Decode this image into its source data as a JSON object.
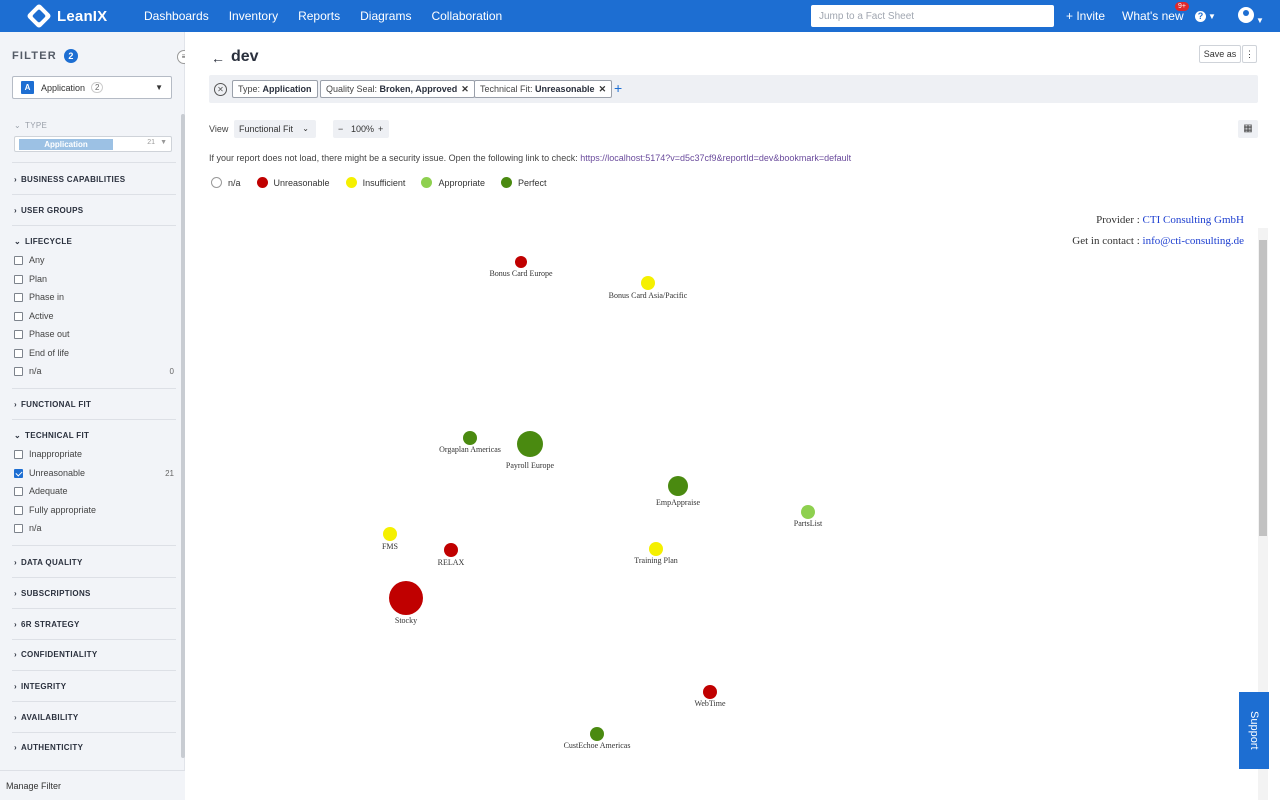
{
  "topbar": {
    "logo": "LeanIX",
    "nav": [
      "Dashboards",
      "Inventory",
      "Reports",
      "Diagrams",
      "Collaboration"
    ],
    "search_placeholder": "Jump to a Fact Sheet",
    "invite": "+ Invite",
    "whats_new": "What's new",
    "whats_new_badge": "9+",
    "help": "?"
  },
  "sidebar": {
    "title": "FILTER",
    "count": "2",
    "type_select": {
      "letter": "A",
      "label": "Application",
      "count": "2"
    },
    "type_section": "TYPE",
    "type_chip": {
      "label": "Application",
      "count": "21"
    },
    "sections": {
      "business_capabilities": "BUSINESS CAPABILITIES",
      "user_groups": "USER GROUPS",
      "lifecycle": "LIFECYCLE",
      "functional_fit": "FUNCTIONAL FIT",
      "technical_fit": "TECHNICAL FIT",
      "data_quality": "DATA QUALITY",
      "subscriptions": "SUBSCRIPTIONS",
      "six_r": "6R STRATEGY",
      "confidentiality": "CONFIDENTIALITY",
      "integrity": "INTEGRITY",
      "availability": "AVAILABILITY",
      "authenticity": "AUTHENTICITY"
    },
    "lifecycle_options": [
      {
        "label": "Any",
        "count": ""
      },
      {
        "label": "Plan",
        "count": ""
      },
      {
        "label": "Phase in",
        "count": ""
      },
      {
        "label": "Active",
        "count": ""
      },
      {
        "label": "Phase out",
        "count": ""
      },
      {
        "label": "End of life",
        "count": ""
      },
      {
        "label": "n/a",
        "count": "0"
      }
    ],
    "technical_fit_options": [
      {
        "label": "Inappropriate",
        "count": "",
        "checked": false
      },
      {
        "label": "Unreasonable",
        "count": "21",
        "checked": true
      },
      {
        "label": "Adequate",
        "count": "",
        "checked": false
      },
      {
        "label": "Fully appropriate",
        "count": "",
        "checked": false
      },
      {
        "label": "n/a",
        "count": "",
        "checked": false
      }
    ],
    "manage_filter": "Manage Filter"
  },
  "main": {
    "title": "dev",
    "save_as": "Save as",
    "kebab": "⋮",
    "filters": [
      {
        "key": "Type:",
        "value": "Application",
        "removable": false
      },
      {
        "key": "Quality Seal:",
        "value": "Broken, Approved",
        "removable": true
      },
      {
        "key": "Technical Fit:",
        "value": "Unreasonable",
        "removable": true
      }
    ],
    "view_label": "View",
    "view_value": "Functional Fit",
    "zoom": {
      "minus": "−",
      "value": "100%",
      "plus": "+"
    },
    "warning_text": "If your report does not load, there might be a security issue. Open the following link to check:",
    "warning_link": "https://localhost:5174?v=d5c37cf9&reportId=dev&bookmark=default",
    "legend": [
      {
        "label": "n/a",
        "color": "#ffffff"
      },
      {
        "label": "Unreasonable",
        "color": "#c00000"
      },
      {
        "label": "Insufficient",
        "color": "#f5f000"
      },
      {
        "label": "Appropriate",
        "color": "#8ed04f"
      },
      {
        "label": "Perfect",
        "color": "#4a8a10"
      }
    ],
    "provider_label": "Provider :",
    "provider_name": "CTI Consulting GmbH",
    "contact_label": "Get in contact :",
    "contact_email": "info@cti-consulting.de",
    "support": "Support"
  },
  "chart_data": {
    "type": "scatter",
    "points": [
      {
        "label": "Bonus Card Europe",
        "fit": "Unreasonable"
      },
      {
        "label": "Bonus Card Asia/Pacific",
        "fit": "Insufficient"
      },
      {
        "label": "Orgaplan Americas",
        "fit": "Perfect"
      },
      {
        "label": "Payroll Europe",
        "fit": "Perfect"
      },
      {
        "label": "EmpAppraise",
        "fit": "Perfect"
      },
      {
        "label": "PartsList",
        "fit": "Appropriate"
      },
      {
        "label": "FMS",
        "fit": "Insufficient"
      },
      {
        "label": "RELAX",
        "fit": "Unreasonable"
      },
      {
        "label": "Training Plan",
        "fit": "Insufficient"
      },
      {
        "label": "Stocky",
        "fit": "Unreasonable"
      },
      {
        "label": "WebTime",
        "fit": "Unreasonable"
      },
      {
        "label": "CustEchoe Americas",
        "fit": "Perfect"
      }
    ]
  }
}
